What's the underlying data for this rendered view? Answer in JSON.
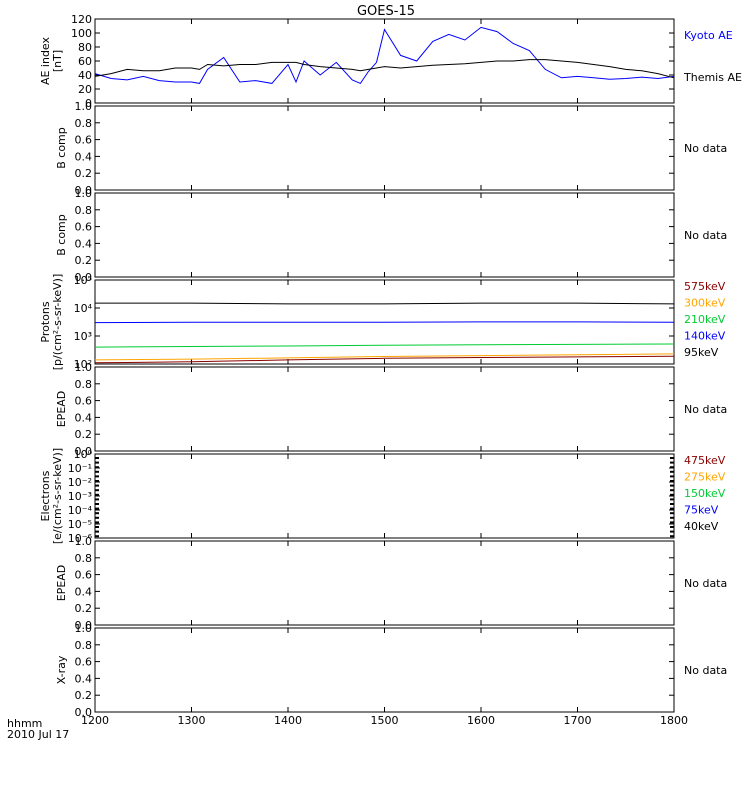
{
  "title": "GOES-15",
  "time_label_1": "hhmm",
  "time_label_2": "2010 Jul 17",
  "x_ticks": [
    "1200",
    "1300",
    "1400",
    "1500",
    "1600",
    "1700",
    "1800"
  ],
  "colors": {
    "axis": "#000000",
    "kyoto": "#0000ff",
    "themis": "#000000",
    "e575": "#8b0000",
    "e300": "#ffa500",
    "e210": "#00cc33",
    "e140": "#0000ff",
    "e95": "#000000"
  },
  "panels": [
    {
      "id": "ae",
      "ylabel_lines": [
        "AE index",
        "[nT]"
      ],
      "yticks": [
        "0",
        "20",
        "40",
        "60",
        "80",
        "100",
        "120"
      ],
      "right_labels": [
        {
          "text": "Kyoto AE",
          "color": "#0000ff"
        },
        {
          "text": "Themis AE",
          "color": "#000000"
        }
      ]
    },
    {
      "id": "b1",
      "ylabel_lines": [
        "B comp"
      ],
      "yticks": [
        "0.0",
        "0.2",
        "0.4",
        "0.6",
        "0.8",
        "1.0"
      ],
      "right_labels": [
        {
          "text": "No data",
          "color": "#000000"
        }
      ]
    },
    {
      "id": "b2",
      "ylabel_lines": [
        "B comp"
      ],
      "yticks": [
        "0.0",
        "0.2",
        "0.4",
        "0.6",
        "0.8",
        "1.0"
      ],
      "right_labels": [
        {
          "text": "No data",
          "color": "#000000"
        }
      ]
    },
    {
      "id": "protons",
      "ylabel_lines": [
        "Protons",
        "[p/(cm²-s-sr-keV)]"
      ],
      "yticks": [
        "10²",
        "10³",
        "10⁴",
        "10⁵"
      ],
      "right_labels": [
        {
          "text": "575keV",
          "color": "#8b0000"
        },
        {
          "text": "300keV",
          "color": "#ffa500"
        },
        {
          "text": "210keV",
          "color": "#00cc33"
        },
        {
          "text": "140keV",
          "color": "#0000ff"
        },
        {
          "text": "95keV",
          "color": "#000000"
        }
      ]
    },
    {
      "id": "epead1",
      "ylabel_lines": [
        "EPEAD"
      ],
      "yticks": [
        "0.0",
        "0.2",
        "0.4",
        "0.6",
        "0.8",
        "1.0"
      ],
      "right_labels": [
        {
          "text": "No data",
          "color": "#000000"
        }
      ]
    },
    {
      "id": "electrons",
      "ylabel_lines": [
        "Electrons",
        "[e/(cm²-s-sr-keV)]"
      ],
      "yticks": [
        "10⁻⁶",
        "10⁻⁵",
        "10⁻⁴",
        "10⁻³",
        "10⁻²",
        "10⁻¹",
        "10⁰"
      ],
      "right_labels": [
        {
          "text": "475keV",
          "color": "#8b0000"
        },
        {
          "text": "275keV",
          "color": "#ffa500"
        },
        {
          "text": "150keV",
          "color": "#00cc33"
        },
        {
          "text": "75keV",
          "color": "#0000ff"
        },
        {
          "text": "40keV",
          "color": "#000000"
        }
      ]
    },
    {
      "id": "epead2",
      "ylabel_lines": [
        "EPEAD"
      ],
      "yticks": [
        "0.0",
        "0.2",
        "0.4",
        "0.6",
        "0.8",
        "1.0"
      ],
      "right_labels": [
        {
          "text": "No data",
          "color": "#000000"
        }
      ]
    },
    {
      "id": "xray",
      "ylabel_lines": [
        "X-ray"
      ],
      "yticks": [
        "0.0",
        "0.2",
        "0.4",
        "0.6",
        "0.8",
        "1.0"
      ],
      "right_labels": [
        {
          "text": "No data",
          "color": "#000000"
        }
      ]
    }
  ],
  "chart_data": {
    "type": "line",
    "title": "GOES-15",
    "x_axis": {
      "label": "hhmm",
      "date": "2010 Jul 17",
      "range": [
        "1200",
        "1800"
      ]
    },
    "ae_panel": {
      "ylabel": "AE index [nT]",
      "ylim": [
        0,
        120
      ],
      "x": [
        "1200",
        "1210",
        "1220",
        "1230",
        "1240",
        "1250",
        "1300",
        "1305",
        "1310",
        "1320",
        "1330",
        "1340",
        "1350",
        "1400",
        "1405",
        "1410",
        "1420",
        "1430",
        "1440",
        "1445",
        "1450",
        "1455",
        "1500",
        "1510",
        "1520",
        "1530",
        "1540",
        "1550",
        "1600",
        "1610",
        "1620",
        "1630",
        "1640",
        "1650",
        "1700",
        "1710",
        "1720",
        "1730",
        "1740",
        "1750",
        "1800"
      ],
      "series": [
        {
          "name": "Kyoto AE",
          "values": [
            42,
            35,
            33,
            38,
            32,
            30,
            30,
            28,
            48,
            65,
            30,
            32,
            28,
            55,
            30,
            60,
            40,
            58,
            33,
            28,
            45,
            58,
            105,
            68,
            60,
            88,
            98,
            90,
            108,
            102,
            85,
            75,
            48,
            36,
            38,
            36,
            34,
            35,
            37,
            35,
            38
          ]
        },
        {
          "name": "Themis AE",
          "values": [
            38,
            42,
            48,
            46,
            46,
            50,
            50,
            48,
            55,
            53,
            55,
            55,
            58,
            58,
            58,
            55,
            52,
            50,
            48,
            46,
            48,
            50,
            52,
            50,
            52,
            54,
            55,
            56,
            58,
            60,
            60,
            62,
            62,
            60,
            58,
            55,
            52,
            48,
            46,
            42,
            36
          ]
        }
      ]
    },
    "protons_panel": {
      "ylabel": "Protons [p/(cm²-s-sr-keV)]",
      "scale": "log",
      "ylim": [
        100,
        100000
      ],
      "x": [
        "1200",
        "1300",
        "1400",
        "1500",
        "1600",
        "1700",
        "1800"
      ],
      "series": [
        {
          "name": "575keV",
          "values": [
            110,
            120,
            140,
            160,
            170,
            180,
            190
          ]
        },
        {
          "name": "300keV",
          "values": [
            140,
            150,
            165,
            185,
            200,
            215,
            230
          ]
        },
        {
          "name": "210keV",
          "values": [
            400,
            420,
            440,
            470,
            490,
            500,
            520
          ]
        },
        {
          "name": "140keV",
          "values": [
            3000,
            3100,
            3100,
            3100,
            3200,
            3200,
            3100
          ]
        },
        {
          "name": "95keV",
          "values": [
            15000,
            15000,
            14000,
            14000,
            15000,
            15000,
            14000
          ]
        }
      ]
    },
    "electrons_panel": {
      "ylabel": "Electrons [e/(cm²-s-sr-keV)]",
      "scale": "log",
      "ylim": [
        1e-06,
        1
      ],
      "series_names": [
        "475keV",
        "275keV",
        "150keV",
        "75keV",
        "40keV"
      ]
    },
    "empty_panels": [
      "B comp",
      "B comp",
      "EPEAD",
      "EPEAD",
      "X-ray"
    ]
  }
}
